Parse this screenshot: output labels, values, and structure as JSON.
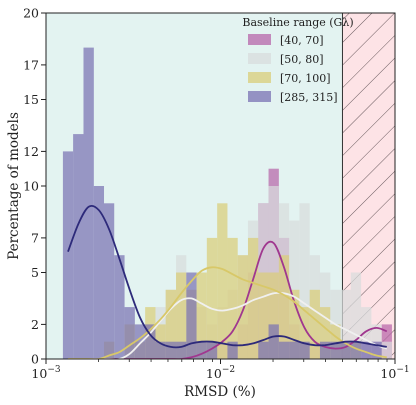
{
  "chart_data": {
    "type": "bar",
    "xlabel": "RMSD (%)",
    "ylabel": "Percentage of models",
    "x_scale": "log",
    "xlim": [
      0.001,
      0.1
    ],
    "ylim": [
      0,
      20
    ],
    "x_ticks": [
      0.001,
      0.01,
      0.1
    ],
    "x_tick_labels": [
      "10−3",
      "10−2",
      "10−1"
    ],
    "y_ticks": [
      0,
      2,
      5,
      7,
      10,
      12,
      15,
      17,
      20
    ],
    "y_tick_labels": [
      "0",
      "2",
      "5",
      "7",
      "10",
      "12",
      "15",
      "17",
      "20"
    ],
    "background_color": "#e3f3f1",
    "shaded_region": {
      "x_from": 0.05,
      "x_to": 0.1,
      "color": "#fde3e6",
      "hatch": "//"
    },
    "legend": {
      "title": "Baseline range (Gλ)",
      "placement": "top-right"
    },
    "bin_edges": [
      0.00125,
      0.00143,
      0.00164,
      0.00188,
      0.00215,
      0.00246,
      0.00282,
      0.00323,
      0.0037,
      0.00424,
      0.00485,
      0.00556,
      0.00637,
      0.00729,
      0.00835,
      0.00957,
      0.01096,
      0.01255,
      0.01437,
      0.01646,
      0.01885,
      0.0216,
      0.02473,
      0.02833,
      0.03244,
      0.03716,
      0.04256,
      0.04874,
      0.05582,
      0.06394,
      0.07323,
      0.08387,
      0.09605
    ],
    "series": [
      {
        "name": "[40, 70]",
        "color": "#b765a9",
        "values": [
          0,
          0,
          0,
          0,
          0,
          0,
          0,
          0,
          0,
          0,
          0,
          0,
          0,
          0,
          1,
          1,
          1,
          2,
          5,
          9,
          11,
          7,
          2,
          1,
          1,
          0,
          0,
          1,
          0,
          1,
          1,
          2
        ],
        "kde": [
          0,
          0,
          0,
          0,
          0,
          0,
          0,
          0,
          0,
          0,
          0,
          0,
          0.1,
          0.3,
          0.6,
          1.0,
          1.6,
          2.8,
          4.6,
          6.4,
          6.7,
          5.3,
          3.3,
          1.8,
          1.0,
          0.7,
          0.6,
          0.7,
          1.1,
          1.6,
          1.8,
          1.6
        ]
      },
      {
        "name": "[50, 80]",
        "color": "#d8dcdc",
        "values": [
          0,
          0,
          0,
          0,
          0,
          0,
          0,
          1,
          2,
          3,
          4,
          6,
          4,
          3,
          2,
          3,
          4,
          6,
          8,
          9,
          10,
          9,
          8,
          9,
          6,
          5,
          4,
          4,
          5,
          3,
          2,
          1
        ],
        "kde": [
          0,
          0,
          0,
          0,
          0,
          0,
          0.3,
          0.9,
          1.5,
          2.2,
          2.9,
          3.4,
          3.5,
          3.2,
          2.9,
          2.8,
          2.9,
          3.1,
          3.4,
          3.6,
          3.8,
          3.8,
          3.6,
          3.2,
          2.8,
          2.4,
          2.0,
          1.7,
          1.4,
          1.1,
          0.8,
          0.6
        ]
      },
      {
        "name": "[70, 100]",
        "color": "#d9cd78",
        "values": [
          0,
          0,
          0,
          0,
          1,
          0,
          2,
          1,
          3,
          2,
          4,
          5,
          4,
          5,
          7,
          9,
          7,
          6,
          7,
          5,
          5,
          6,
          4,
          3,
          4,
          3,
          2,
          1,
          1,
          0,
          0,
          0
        ],
        "kde": [
          0,
          0,
          0,
          0,
          0.2,
          0.4,
          0.8,
          1.2,
          1.7,
          2.3,
          3.0,
          3.8,
          4.5,
          5.1,
          5.3,
          5.2,
          4.9,
          4.6,
          4.4,
          4.2,
          4.0,
          3.7,
          3.3,
          2.8,
          2.3,
          1.8,
          1.3,
          0.9,
          0.6,
          0.4,
          0.2,
          0.1
        ]
      },
      {
        "name": "[285, 315]",
        "color": "#7a72b3",
        "values": [
          12,
          13,
          18,
          10,
          9,
          6,
          3,
          2,
          2,
          1,
          1,
          1,
          5,
          1,
          1,
          0,
          1,
          0,
          0,
          1,
          2,
          1,
          1,
          1,
          0,
          1,
          1,
          1,
          1,
          1,
          1,
          0
        ],
        "kde": [
          6.2,
          7.8,
          8.8,
          8.6,
          7.5,
          5.8,
          4.0,
          2.4,
          1.4,
          0.9,
          0.7,
          0.7,
          0.9,
          1.0,
          1.0,
          0.9,
          0.8,
          0.8,
          0.9,
          1.1,
          1.3,
          1.3,
          1.1,
          0.9,
          0.8,
          0.8,
          0.9,
          1.0,
          1.0,
          0.9,
          0.8,
          0.7
        ]
      }
    ]
  }
}
